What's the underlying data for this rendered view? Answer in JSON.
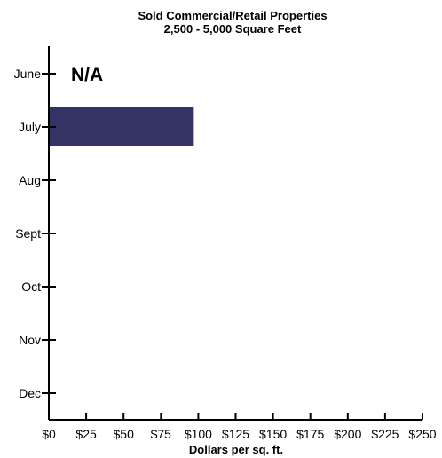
{
  "chart_data": {
    "type": "bar",
    "orientation": "horizontal",
    "title": "Sold Commercial/Retail Properties",
    "subtitle": "2,500 - 5,000 Square Feet",
    "xlabel": "Dollars per sq. ft.",
    "ylabel": "",
    "categories": [
      "June",
      "July",
      "Aug",
      "Sept",
      "Oct",
      "Nov",
      "Dec"
    ],
    "values": [
      null,
      97,
      null,
      null,
      null,
      null,
      null
    ],
    "xlim": [
      0,
      250
    ],
    "x_ticks": [
      0,
      25,
      50,
      75,
      100,
      125,
      150,
      175,
      200,
      225,
      250
    ],
    "x_tick_labels": [
      "$0",
      "$25",
      "$50",
      "$75",
      "$100",
      "$125",
      "$150",
      "$175",
      "$200",
      "$225",
      "$250"
    ],
    "bar_color": "#333366",
    "grid": false,
    "annotations": [
      {
        "category": "June",
        "text": "N/A"
      }
    ]
  }
}
